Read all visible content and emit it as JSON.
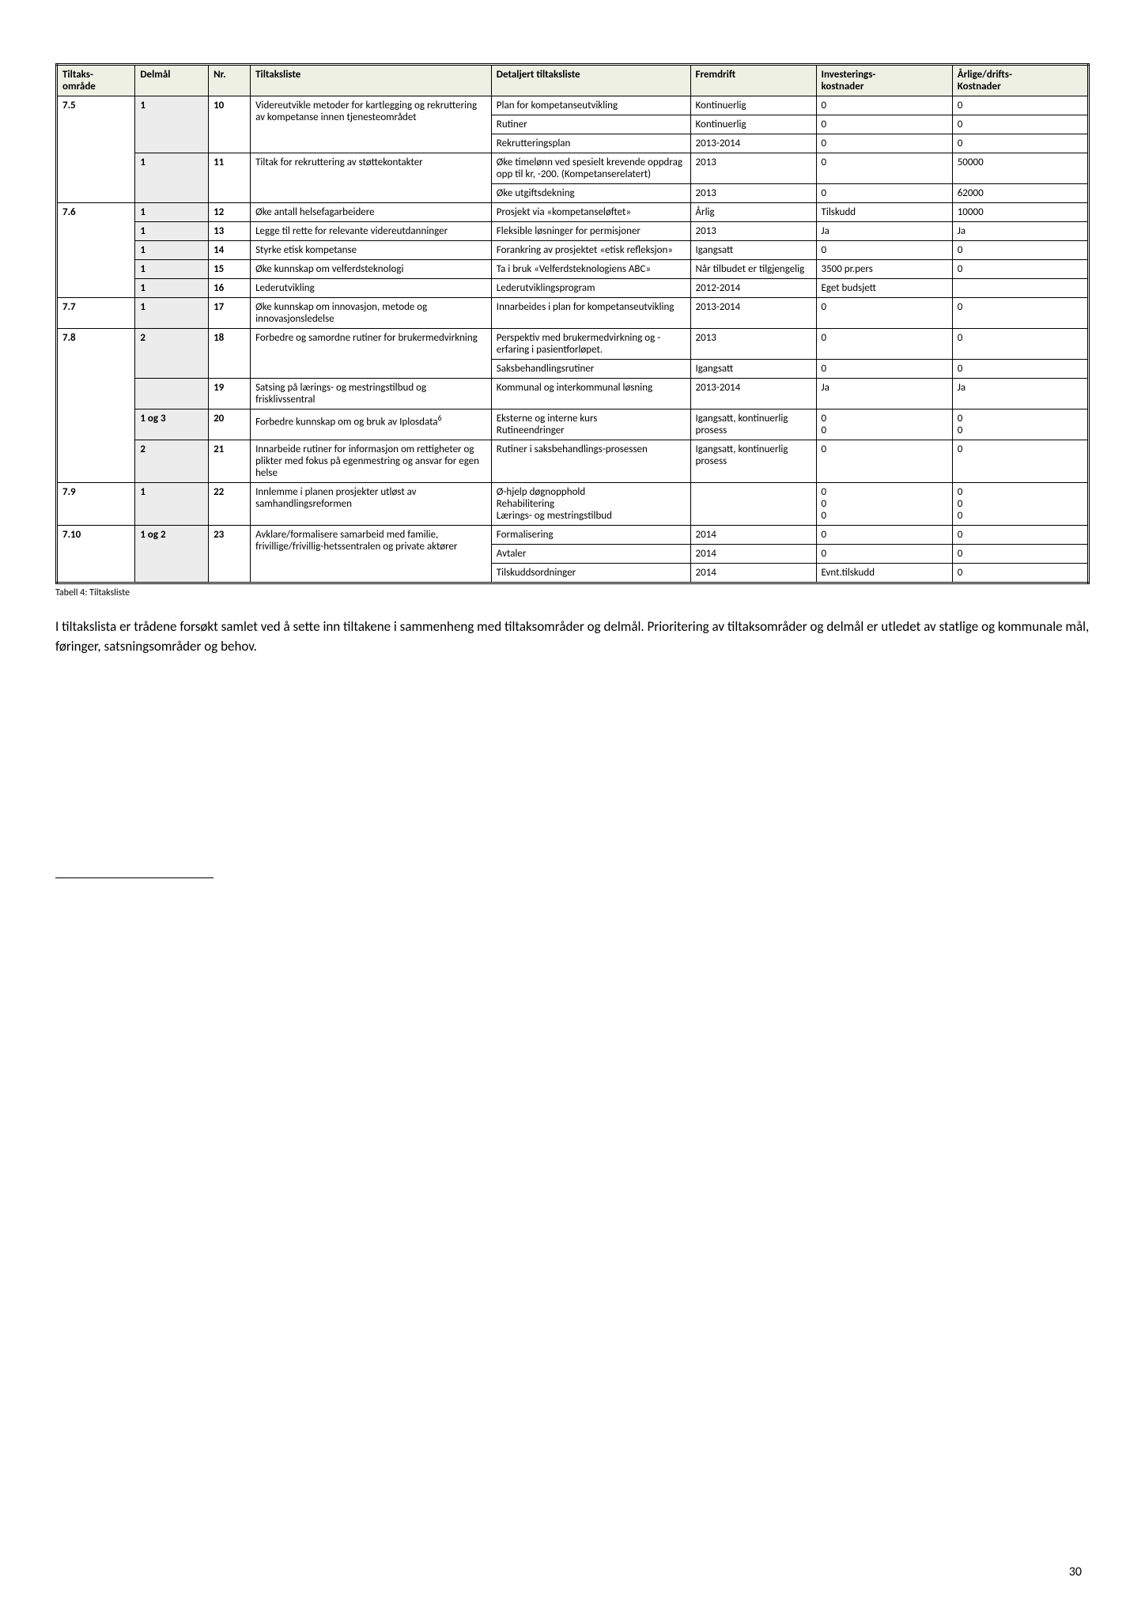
{
  "table": {
    "headers": {
      "omrade": "Tiltaks-\nområde",
      "delmal": "Delmål",
      "nr": "Nr.",
      "tiltak": "Tiltaksliste",
      "detalj": "Detaljert tiltaksliste",
      "fremdrift": "Fremdrift",
      "invest": "Investerings-\nkostnader",
      "arlig": "Årlige/drifts-\nKostnader"
    }
  },
  "r": {
    "omrade75": "7.5",
    "d1": "1",
    "nr10": "10",
    "tiltak10": "Videreutvikle metoder for kartlegging og rekruttering av kompetanse innen tjenesteområdet",
    "det10a": "Plan for kompetanseutvikling",
    "frem10a": "Kontinuerlig",
    "inv10a": "0",
    "arl10a": "0",
    "det10b": "Rutiner",
    "frem10b": "Kontinuerlig",
    "inv10b": "0",
    "arl10b": "0",
    "det10c": "Rekrutteringsplan",
    "frem10c": "2013-2014",
    "inv10c": "0",
    "arl10c": "0",
    "nr11": "11",
    "tiltak11": "Tiltak for rekruttering av støttekontakter",
    "det11a": "Øke timelønn ved spesielt krevende oppdrag opp til kr, -200. (Kompetanserelatert)",
    "frem11a": "2013",
    "inv11a": "0",
    "arl11a": "50000",
    "det11b": "Øke utgiftsdekning",
    "frem11b": "2013",
    "inv11b": "0",
    "arl11b": "62000",
    "omrade76": "7.6",
    "nr12": "12",
    "tiltak12": "Øke antall helsefagarbeidere",
    "det12": "Prosjekt via «kompetanseløftet»",
    "frem12": "Årlig",
    "inv12": "Tilskudd",
    "arl12": "10000",
    "nr13": "13",
    "tiltak13": "Legge til rette for relevante videreutdanninger",
    "det13": "Fleksible løsninger for permisjoner",
    "frem13": "2013",
    "inv13": "Ja",
    "arl13": "Ja",
    "nr14": "14",
    "tiltak14": "Styrke etisk kompetanse",
    "det14": "Forankring av prosjektet «etisk refleksjon»",
    "frem14": "Igangsatt",
    "inv14": "0",
    "arl14": "0",
    "nr15": "15",
    "tiltak15": "Øke kunnskap om velferdsteknologi",
    "det15": "Ta i bruk «Velferdsteknologiens ABC»",
    "frem15": "Når tilbudet er tilgjengelig",
    "inv15": "3500 pr.pers",
    "arl15": "0",
    "nr16": "16",
    "tiltak16": "Lederutvikling",
    "det16": "Lederutviklingsprogram",
    "frem16": "2012-2014",
    "inv16": "Eget budsjett",
    "arl16": "",
    "omrade77": "7.7",
    "nr17": "17",
    "tiltak17": "Øke kunnskap om innovasjon, metode og innovasjonsledelse",
    "det17": "Innarbeides i plan for kompetanseutvikling",
    "frem17": "2013-2014",
    "inv17": "0",
    "arl17": "0",
    "omrade78": "7.8",
    "d2": "2",
    "nr18": "18",
    "tiltak18": "Forbedre og samordne rutiner for brukermedvirkning",
    "det18a": "Perspektiv med brukermedvirkning og -erfaring i pasientforløpet.",
    "frem18a": "2013",
    "inv18a": "0",
    "arl18a": "0",
    "det18b": "Saksbehandlingsrutiner",
    "frem18b": "Igangsatt",
    "inv18b": "0",
    "arl18b": "0",
    "nr19": "19",
    "tiltak19": "Satsing på lærings- og mestringstilbud og frisklivssentral",
    "det19": "Kommunal og interkommunal løsning",
    "frem19": "2013-2014",
    "inv19": "Ja",
    "arl19": "Ja",
    "d1og3": "1 og 3",
    "nr20": "20",
    "tiltak20_pre": "Forbedre kunnskap om og bruk av Iplosdata",
    "tiltak20_sup": "6",
    "det20a": "Eksterne og interne kurs",
    "det20b": "Rutineendringer",
    "frem20": "Igangsatt, kontinuerlig prosess",
    "inv20a": "0",
    "inv20b": "0",
    "arl20a": "0",
    "arl20b": "0",
    "nr21": "21",
    "tiltak21": "Innarbeide rutiner for informasjon om rettigheter og plikter med fokus på egenmestring og ansvar for egen helse",
    "det21": "Rutiner i saksbehandlings-prosessen",
    "frem21": "Igangsatt, kontinuerlig prosess",
    "inv21": "0",
    "arl21": "0",
    "omrade79": "7.9",
    "nr22": "22",
    "tiltak22": "Innlemme i planen prosjekter utløst av samhandlingsreformen",
    "det22a": "Ø-hjelp døgnopphold",
    "det22b": "Rehabilitering",
    "det22c": "Lærings- og mestringstilbud",
    "inv22a": "0",
    "inv22b": "0",
    "inv22c": "0",
    "arl22a": "0",
    "arl22b": "0",
    "arl22c": "0",
    "omrade710": "7.10",
    "d1og2": "1 og 2",
    "nr23": "23",
    "tiltak23": "Avklare/formalisere samarbeid med familie, frivillige/frivillig-hetssentralen og private aktører",
    "det23a": "Formalisering",
    "frem23a": "2014",
    "inv23a": "0",
    "arl23a": "0",
    "det23b": "Avtaler",
    "frem23b": "2014",
    "inv23b": "0",
    "arl23b": "0",
    "det23c": "Tilskuddsordninger",
    "frem23c": "2014",
    "inv23c": "Evnt.tilskudd",
    "arl23c": "0"
  },
  "caption": "Tabell 4: Tiltaksliste",
  "paragraph": "I tiltakslista er trådene forsøkt samlet ved å sette inn tiltakene i sammenheng med tiltaksområder og delmål. Prioritering av tiltaksområder og delmål er utledet av statlige og kommunale mål, føringer, satsningsområder og behov.",
  "page_number": "30"
}
